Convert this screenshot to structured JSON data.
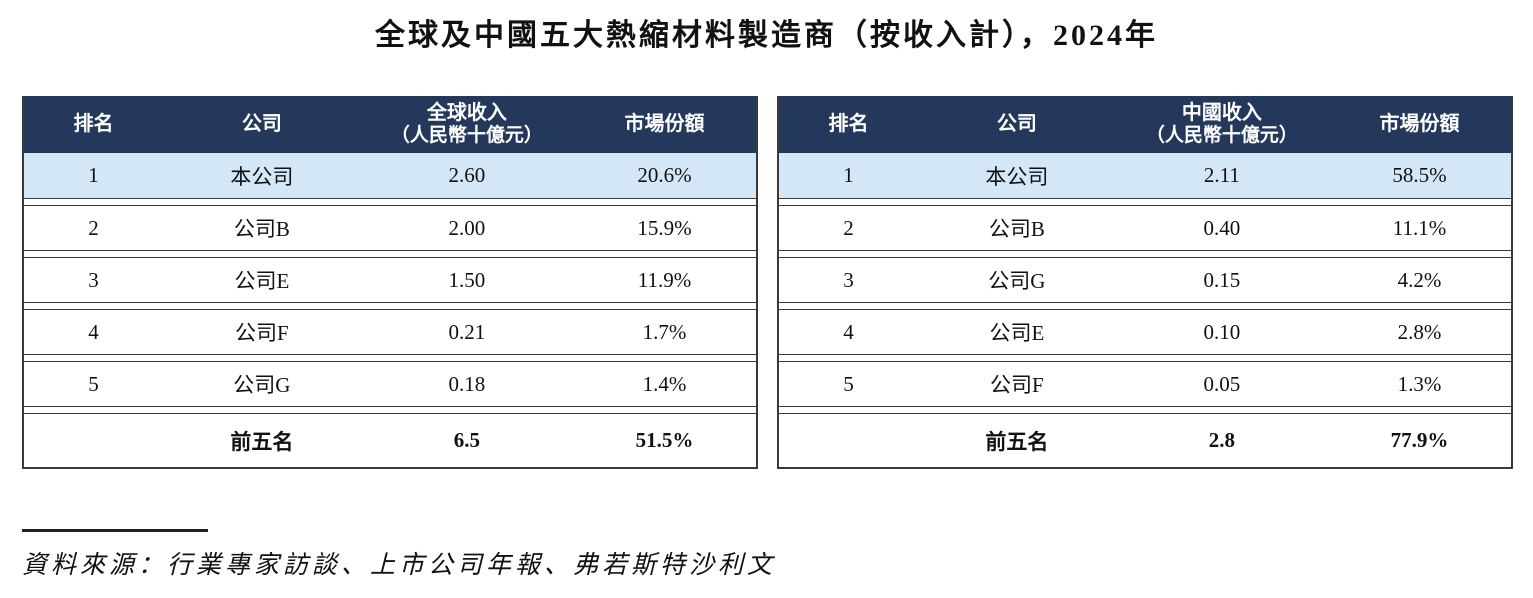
{
  "title": "全球及中國五大熱縮材料製造商（按收入計），2024年",
  "colors": {
    "header_bg": "#24385C",
    "highlight_row_bg": "#D4E7F6",
    "border": "#3a3a3a"
  },
  "tables": [
    {
      "id": "global",
      "headers": [
        {
          "label": "排名"
        },
        {
          "label": "公司"
        },
        {
          "label": "全球收入",
          "sub": "（人民幣十億元）"
        },
        {
          "label": "市場份額"
        }
      ],
      "rows": [
        [
          "1",
          "本公司",
          "2.60",
          "20.6%"
        ],
        [
          "2",
          "公司B",
          "2.00",
          "15.9%"
        ],
        [
          "3",
          "公司E",
          "1.50",
          "11.9%"
        ],
        [
          "4",
          "公司F",
          "0.21",
          "1.7%"
        ],
        [
          "5",
          "公司G",
          "0.18",
          "1.4%"
        ]
      ],
      "total": [
        "",
        "前五名",
        "6.5",
        "51.5%"
      ]
    },
    {
      "id": "china",
      "headers": [
        {
          "label": "排名"
        },
        {
          "label": "公司"
        },
        {
          "label": "中國收入",
          "sub": "（人民幣十億元）"
        },
        {
          "label": "市場份額"
        }
      ],
      "rows": [
        [
          "1",
          "本公司",
          "2.11",
          "58.5%"
        ],
        [
          "2",
          "公司B",
          "0.40",
          "11.1%"
        ],
        [
          "3",
          "公司G",
          "0.15",
          "4.2%"
        ],
        [
          "4",
          "公司E",
          "0.10",
          "2.8%"
        ],
        [
          "5",
          "公司F",
          "0.05",
          "1.3%"
        ]
      ],
      "total": [
        "",
        "前五名",
        "2.8",
        "77.9%"
      ]
    }
  ],
  "source": "資料來源：行業專家訪談、上市公司年報、弗若斯特沙利文"
}
